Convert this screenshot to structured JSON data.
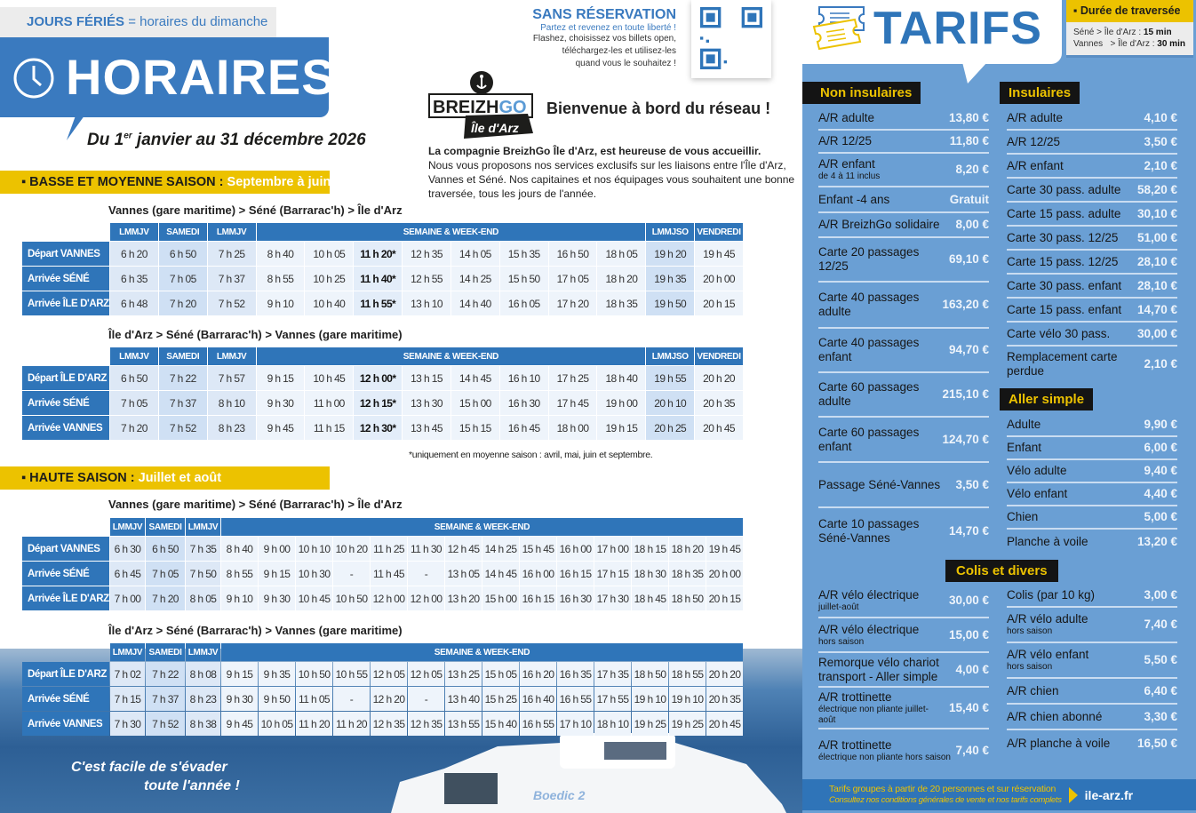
{
  "header": {
    "holiday_bold": "JOURS FÉRIÉS",
    "holiday_rest": " = horaires du dimanche",
    "title": "HORAIRES",
    "period_pre": "Du 1",
    "period_sup": "er",
    "period_post": " janvier au 31 décembre 2026"
  },
  "seasons": {
    "low": {
      "label": "▪ BASSE ET MOYENNE SAISON : ",
      "months": "Septembre à juin"
    },
    "high": {
      "label": "▪ HAUTE SAISON : ",
      "months": "Juillet et août"
    }
  },
  "routes": {
    "to_island": "Vannes (gare maritime) > Séné (Barrarac'h) > Île d'Arz",
    "to_vannes": "Île d'Arz > Séné (Barrarac'h) > Vannes (gare maritime)"
  },
  "tables": [
    {
      "headers": [
        [
          "LMMJV",
          1
        ],
        [
          "SAMEDI",
          1
        ],
        [
          "LMMJV",
          1
        ],
        [
          "SEMAINE & WEEK-END",
          8
        ],
        [
          "LMMJSO",
          1
        ],
        [
          "VENDREDI",
          1
        ]
      ],
      "rows": [
        {
          "label": "Départ VANNES",
          "times": [
            "6 h 20",
            "6 h 50",
            "7 h 25",
            "8 h 40",
            "10 h 05",
            "11 h 20*",
            "12 h 35",
            "14 h 05",
            "15 h 35",
            "16 h 50",
            "18 h 05",
            "19 h 20",
            "19 h 45"
          ]
        },
        {
          "label": "Arrivée SÉNÉ",
          "times": [
            "6 h 35",
            "7 h 05",
            "7 h 37",
            "8 h 55",
            "10 h 25",
            "11 h 40*",
            "12 h 55",
            "14 h 25",
            "15 h 50",
            "17 h 05",
            "18 h 20",
            "19 h 35",
            "20 h 00"
          ]
        },
        {
          "label": "Arrivée ÎLE D'ARZ",
          "times": [
            "6 h 48",
            "7 h 20",
            "7 h 52",
            "9 h 10",
            "10 h 40",
            "11 h 55*",
            "13 h 10",
            "14 h 40",
            "16 h 05",
            "17 h 20",
            "18 h 35",
            "19 h 50",
            "20 h 15"
          ]
        }
      ]
    },
    {
      "headers": [
        [
          "LMMJV",
          1
        ],
        [
          "SAMEDI",
          1
        ],
        [
          "LMMJV",
          1
        ],
        [
          "SEMAINE & WEEK-END",
          8
        ],
        [
          "LMMJSO",
          1
        ],
        [
          "VENDREDI",
          1
        ]
      ],
      "rows": [
        {
          "label": "Départ ÎLE D'ARZ",
          "times": [
            "6 h 50",
            "7 h 22",
            "7 h 57",
            "9 h 15",
            "10 h 45",
            "12 h 00*",
            "13 h 15",
            "14 h 45",
            "16 h 10",
            "17 h 25",
            "18 h 40",
            "19 h 55",
            "20 h 20"
          ]
        },
        {
          "label": "Arrivée SÉNÉ",
          "times": [
            "7 h 05",
            "7 h 37",
            "8 h 10",
            "9 h 30",
            "11 h 00",
            "12 h 15*",
            "13 h 30",
            "15 h 00",
            "16 h 30",
            "17 h 45",
            "19 h 00",
            "20 h 10",
            "20 h 35"
          ]
        },
        {
          "label": "Arrivée VANNES",
          "times": [
            "7 h 20",
            "7 h 52",
            "8 h 23",
            "9 h 45",
            "11 h 15",
            "12 h 30*",
            "13 h 45",
            "15 h 15",
            "16 h 45",
            "18 h 00",
            "19 h 15",
            "20 h 25",
            "20 h 45"
          ]
        }
      ]
    },
    {
      "headers": [
        [
          "LMMJV",
          1
        ],
        [
          "SAMEDI",
          1
        ],
        [
          "LMMJV",
          1
        ],
        [
          "SEMAINE & WEEK-END",
          14
        ]
      ],
      "rows": [
        {
          "label": "Départ VANNES",
          "times": [
            "6 h 30",
            "6 h 50",
            "7 h 35",
            "8 h 40",
            "9 h 00",
            "10 h 10",
            "10 h 20",
            "11 h 25",
            "11 h 30",
            "12 h 45",
            "14 h 25",
            "15 h 45",
            "16 h 00",
            "17 h 00",
            "18 h 15",
            "18 h 20",
            "19 h 45"
          ]
        },
        {
          "label": "Arrivée SÉNÉ",
          "times": [
            "6 h 45",
            "7 h 05",
            "7 h 50",
            "8 h 55",
            "9 h 15",
            "10 h 30",
            "-",
            "11 h 45",
            "-",
            "13 h 05",
            "14 h 45",
            "16 h 00",
            "16 h 15",
            "17 h 15",
            "18 h 30",
            "18 h 35",
            "20 h 00"
          ]
        },
        {
          "label": "Arrivée ÎLE D'ARZ",
          "times": [
            "7 h 00",
            "7 h 20",
            "8 h 05",
            "9 h 10",
            "9 h 30",
            "10 h 45",
            "10 h 50",
            "12 h 00",
            "12 h 00",
            "13 h 20",
            "15 h 00",
            "16 h 15",
            "16 h 30",
            "17 h 30",
            "18 h 45",
            "18 h 50",
            "20 h 15"
          ]
        }
      ]
    },
    {
      "headers": [
        [
          "LMMJV",
          1
        ],
        [
          "SAMEDI",
          1
        ],
        [
          "LMMJV",
          1
        ],
        [
          "SEMAINE & WEEK-END",
          14
        ]
      ],
      "rows": [
        {
          "label": "Départ ÎLE D'ARZ",
          "times": [
            "7 h 02",
            "7 h 22",
            "8 h 08",
            "9 h 15",
            "9 h 35",
            "10 h 50",
            "10 h 55",
            "12 h 05",
            "12 h 05",
            "13 h 25",
            "15 h 05",
            "16 h 20",
            "16 h 35",
            "17 h 35",
            "18 h 50",
            "18 h 55",
            "20 h 20"
          ]
        },
        {
          "label": "Arrivée SÉNÉ",
          "times": [
            "7 h 15",
            "7 h 37",
            "8 h 23",
            "9 h 30",
            "9 h 50",
            "11 h 05",
            "-",
            "12 h 20",
            "-",
            "13 h 40",
            "15 h 25",
            "16 h 40",
            "16 h 55",
            "17 h 55",
            "19 h 10",
            "19 h 10",
            "20 h 35"
          ]
        },
        {
          "label": "Arrivée VANNES",
          "times": [
            "7 h 30",
            "7 h 52",
            "8 h 38",
            "9 h 45",
            "10 h 05",
            "11 h 20",
            "11 h 20",
            "12 h 35",
            "12 h 35",
            "13 h 55",
            "15 h 40",
            "16 h 55",
            "17 h 10",
            "18 h 10",
            "19 h 25",
            "19 h 25",
            "20 h 45"
          ]
        }
      ]
    }
  ],
  "footnote": "*uniquement en moyenne saison : avril, mai, juin et septembre.",
  "slogan": {
    "line1": "C'est facile de s'évader",
    "line2": "toute l'année !"
  },
  "boat_name": "Boedic 2",
  "reservation": {
    "title": "SANS RÉSERVATION",
    "subtitle": "Partez et revenez en toute liberté !",
    "l1": "Flashez, choisissez vos billets open,",
    "l2": "téléchargez-les et utilisez-les",
    "l3": "quand vous le souhaitez !"
  },
  "logo": {
    "brand": "BREIZHGO",
    "sub": "Île d'Arz"
  },
  "welcome": "Bienvenue à bord du réseau !",
  "intro": {
    "bold": "La compagnie BreizhGo Île d'Arz, est heureuse de vous accueillir.",
    "text": "Nous vous proposons nos services exclusifs sur les liaisons entre l'Île d'Arz, Vannes et Séné. Nos capitaines et nos équipages vous souhaitent une bonne traversée, tous les jours de l'année."
  },
  "tarifs": {
    "title": "TARIFS",
    "duree": {
      "title": "▪ Durée de traversée",
      "l1": "Séné > Île d'Arz : ",
      "v1": "15 min",
      "l2": "Vannes   > Île d'Arz : ",
      "v2": "30 min"
    },
    "non_insulaires": {
      "title": "Non insulaires",
      "items": [
        {
          "n": "A/R adulte",
          "p": "13,80 €"
        },
        {
          "n": "A/R 12/25",
          "p": "11,80 €"
        },
        {
          "n": "A/R enfant",
          "s": "de 4 à 11 inclus",
          "p": "8,20 €"
        },
        {
          "n": "Enfant -4 ans",
          "p": "Gratuit"
        },
        {
          "n": "A/R BreizhGo solidaire",
          "p": "8,00 €"
        },
        {
          "n": "Carte 20 passages 12/25",
          "p": "69,10 €"
        },
        {
          "n": "Carte 40 passages adulte",
          "p": "163,20 €"
        },
        {
          "n": "Carte 40 passages enfant",
          "p": "94,70 €"
        },
        {
          "n": "Carte 60 passages adulte",
          "p": "215,10 €"
        },
        {
          "n": "Carte 60 passages enfant",
          "p": "124,70 €"
        },
        {
          "n": "Passage Séné-Vannes",
          "p": "3,50 €"
        },
        {
          "n": "Carte 10 passages Séné-Vannes",
          "p": "14,70 €"
        }
      ]
    },
    "insulaires": {
      "title": "Insulaires",
      "items": [
        {
          "n": "A/R adulte",
          "p": "4,10 €"
        },
        {
          "n": "A/R 12/25",
          "p": "3,50 €"
        },
        {
          "n": "A/R enfant",
          "p": "2,10 €"
        },
        {
          "n": "Carte 30 pass. adulte",
          "p": "58,20 €"
        },
        {
          "n": "Carte 15 pass. adulte",
          "p": "30,10 €"
        },
        {
          "n": "Carte 30 pass. 12/25",
          "p": "51,00 €"
        },
        {
          "n": "Carte 15 pass. 12/25",
          "p": "28,10 €"
        },
        {
          "n": "Carte 30 pass. enfant",
          "p": "28,10 €"
        },
        {
          "n": "Carte 15 pass. enfant",
          "p": "14,70 €"
        },
        {
          "n": "Carte vélo 30 pass.",
          "p": "30,00 €"
        },
        {
          "n": "Remplacement carte perdue",
          "p": "2,10 €"
        }
      ]
    },
    "aller_simple": {
      "title": "Aller simple",
      "items": [
        {
          "n": "Adulte",
          "p": "9,90 €"
        },
        {
          "n": "Enfant",
          "p": "6,00 €"
        },
        {
          "n": "Vélo adulte",
          "p": "9,40 €"
        },
        {
          "n": "Vélo enfant",
          "p": "4,40 €"
        },
        {
          "n": "Chien",
          "p": "5,00 €"
        },
        {
          "n": "Planche à voile",
          "p": "13,20 €"
        }
      ]
    },
    "colis": {
      "title": "Colis et divers",
      "left": [
        {
          "n": "A/R vélo électrique",
          "s": "juillet-août",
          "p": "30,00 €"
        },
        {
          "n": "A/R vélo électrique",
          "s": "hors saison",
          "p": "15,00 €"
        },
        {
          "n": "Remorque vélo chariot transport - Aller simple",
          "p": "4,00 €"
        },
        {
          "n": "A/R trottinette",
          "s": "électrique non pliante juillet-août",
          "p": "15,40 €"
        },
        {
          "n": "A/R trottinette",
          "s": "électrique non pliante hors saison",
          "p": "7,40 €"
        }
      ],
      "right": [
        {
          "n": "Colis (par 10 kg)",
          "p": "3,00 €"
        },
        {
          "n": "A/R vélo adulte",
          "s": "hors saison",
          "p": "7,40 €"
        },
        {
          "n": "A/R vélo enfant",
          "s": "hors saison",
          "p": "5,50 €"
        },
        {
          "n": "A/R chien",
          "p": "6,40 €"
        },
        {
          "n": "A/R chien abonné",
          "p": "3,30 €"
        },
        {
          "n": "A/R planche à voile",
          "p": "16,50 €"
        }
      ]
    },
    "footer": {
      "l1": "Tarifs groupes à partir de 20 personnes et sur réservation",
      "l2": "Consultez nos conditions générales de vente et nos tarifs complets",
      "url": "ile-arz.fr"
    }
  },
  "colors": {
    "blue": "#3a7abf",
    "table_blue": "#2f75b9",
    "panel_blue": "#6a9fd4",
    "yellow": "#ecc200",
    "black": "#141414"
  }
}
